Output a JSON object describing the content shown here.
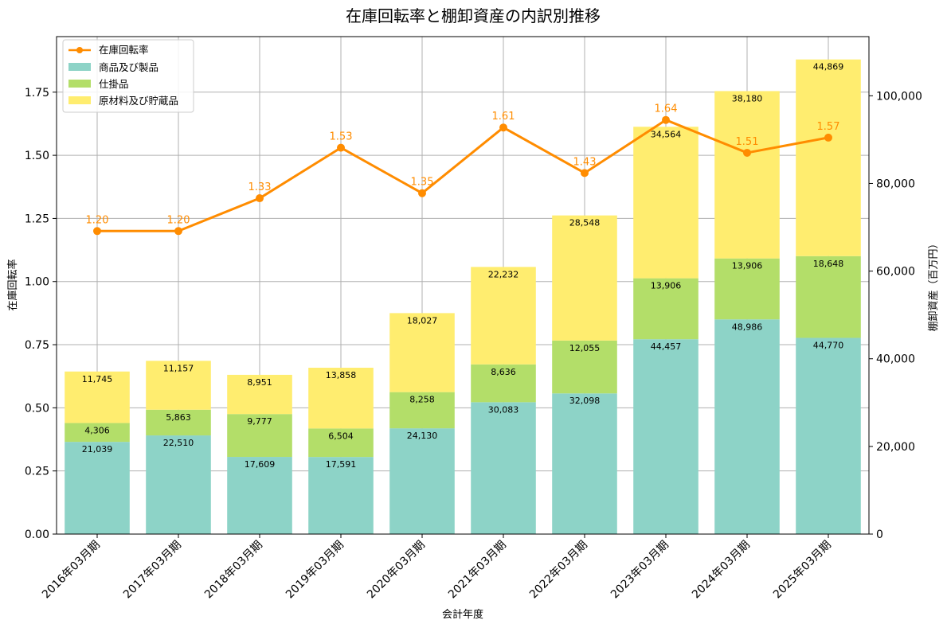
{
  "chart_data": {
    "type": "bar",
    "stacked": true,
    "title": "在庫回転率と棚卸資産の内訳別推移",
    "xlabel": "会計年度",
    "ylabel_left": "在庫回転率",
    "ylabel_right": "棚卸資産（百万円）",
    "ylim_left": [
      0,
      1.97
    ],
    "ylim_right": [
      0,
      113500
    ],
    "left_ticks": [
      "0.00",
      "0.25",
      "0.50",
      "0.75",
      "1.00",
      "1.25",
      "1.50",
      "1.75"
    ],
    "right_ticks": [
      "0",
      "20,000",
      "40,000",
      "60,000",
      "80,000",
      "100,000"
    ],
    "grid": true,
    "legend_position": "top-left",
    "categories": [
      "2016年03月期",
      "2017年03月期",
      "2018年03月期",
      "2019年03月期",
      "2020年03月期",
      "2021年03月期",
      "2022年03月期",
      "2023年03月期",
      "2024年03月期",
      "2025年03月期"
    ],
    "series": [
      {
        "name": "商品及び製品",
        "color": "#8dd3c7",
        "values": [
          21039,
          22510,
          17609,
          17591,
          24130,
          30083,
          32098,
          44457,
          48986,
          44770
        ],
        "labels": [
          "21,039",
          "22,510",
          "17,609",
          "17,591",
          "24,130",
          "30,083",
          "32,098",
          "44,457",
          "48,986",
          "44,770"
        ]
      },
      {
        "name": "仕掛品",
        "color": "#b3de69",
        "values": [
          4306,
          5863,
          9777,
          6504,
          8258,
          8636,
          12055,
          13906,
          13906,
          18648
        ],
        "labels": [
          "4,306",
          "5,863",
          "9,777",
          "6,504",
          "8,258",
          "8,636",
          "12,055",
          "13,906",
          "13,906",
          "18,648"
        ]
      },
      {
        "name": "原材料及び貯蔵品",
        "color": "#ffed6f",
        "values": [
          11745,
          11157,
          8951,
          13858,
          18027,
          22232,
          28548,
          34564,
          38180,
          44869
        ],
        "labels": [
          "11,745",
          "11,157",
          "8,951",
          "13,858",
          "18,027",
          "22,232",
          "28,548",
          "34,564",
          "38,180",
          "44,869"
        ]
      }
    ],
    "line": {
      "name": "在庫回転率",
      "color": "#ff8c00",
      "values": [
        1.2,
        1.2,
        1.33,
        1.53,
        1.35,
        1.61,
        1.43,
        1.64,
        1.51,
        1.57
      ],
      "labels": [
        "1.20",
        "1.20",
        "1.33",
        "1.53",
        "1.35",
        "1.61",
        "1.43",
        "1.64",
        "1.51",
        "1.57"
      ]
    }
  }
}
